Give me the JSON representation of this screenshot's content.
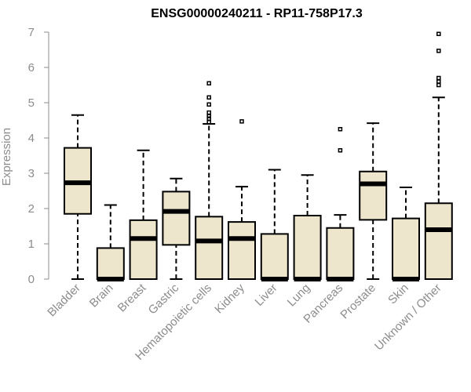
{
  "chart_data": {
    "type": "boxplot",
    "title": "ENSG00000240211 - RP11-758P17.3",
    "xlabel": "",
    "ylabel": "Expression",
    "ylim": [
      0,
      7
    ],
    "yticks": [
      "0",
      "1",
      "2",
      "3",
      "4",
      "5",
      "6",
      "7"
    ],
    "grid": false,
    "box_color": "#ede6cc",
    "categories": [
      "Bladder",
      "Brain",
      "Breast",
      "Gastric",
      "Hematopoietic cells",
      "Kidney",
      "Liver",
      "Lung",
      "Pancreas",
      "Prostate",
      "Skin",
      "Unknown / Other"
    ],
    "boxes": [
      {
        "min": 0,
        "q1": 1.85,
        "median": 2.73,
        "q3": 3.72,
        "max": 4.65,
        "outliers": []
      },
      {
        "min": 0,
        "q1": 0,
        "median": 0,
        "q3": 0.88,
        "max": 2.1,
        "outliers": []
      },
      {
        "min": 0,
        "q1": 0,
        "median": 1.15,
        "q3": 1.67,
        "max": 3.65,
        "outliers": []
      },
      {
        "min": 0,
        "q1": 0.97,
        "median": 1.92,
        "q3": 2.48,
        "max": 2.85,
        "outliers": []
      },
      {
        "min": 0,
        "q1": 0,
        "median": 1.08,
        "q3": 1.77,
        "max": 4.4,
        "outliers": [
          4.45,
          4.55,
          4.62,
          4.72,
          4.95,
          5.15,
          5.55
        ]
      },
      {
        "min": 0,
        "q1": 0,
        "median": 1.15,
        "q3": 1.62,
        "max": 2.62,
        "outliers": [
          4.47
        ]
      },
      {
        "min": 0,
        "q1": 0,
        "median": 0,
        "q3": 1.28,
        "max": 3.1,
        "outliers": []
      },
      {
        "min": 0,
        "q1": 0,
        "median": 0,
        "q3": 1.8,
        "max": 2.95,
        "outliers": []
      },
      {
        "min": 0,
        "q1": 0,
        "median": 0,
        "q3": 1.45,
        "max": 1.82,
        "outliers": [
          3.65,
          4.25
        ]
      },
      {
        "min": 0,
        "q1": 1.68,
        "median": 2.7,
        "q3": 3.05,
        "max": 4.42,
        "outliers": []
      },
      {
        "min": 0,
        "q1": 0,
        "median": 0,
        "q3": 1.72,
        "max": 2.6,
        "outliers": []
      },
      {
        "min": 0,
        "q1": 0,
        "median": 1.4,
        "q3": 2.15,
        "max": 5.15,
        "outliers": [
          5.5,
          5.6,
          5.7,
          6.47,
          6.95
        ]
      }
    ]
  }
}
